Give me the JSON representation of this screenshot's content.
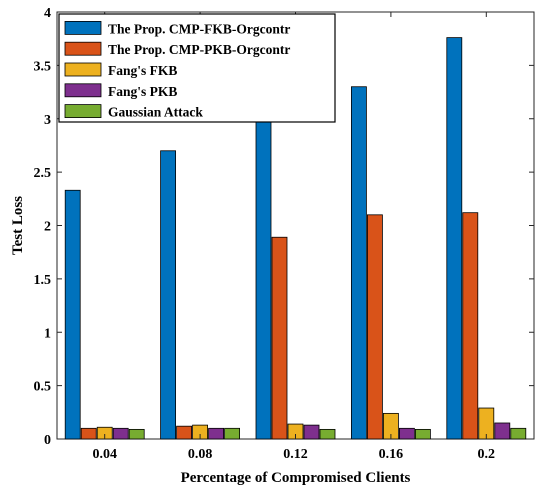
{
  "chart_data": {
    "type": "bar",
    "categories": [
      "0.04",
      "0.08",
      "0.12",
      "0.16",
      "0.2"
    ],
    "series": [
      {
        "name": "The Prop. CMP-FKB-Orgcontr",
        "color": "#0072BD",
        "values": [
          2.33,
          2.7,
          3.08,
          3.3,
          3.76
        ]
      },
      {
        "name": "The Prop. CMP-PKB-Orgcontr",
        "color": "#D95319",
        "values": [
          0.1,
          0.12,
          1.89,
          2.1,
          2.12
        ]
      },
      {
        "name": "Fang's FKB",
        "color": "#EDB120",
        "values": [
          0.11,
          0.13,
          0.14,
          0.24,
          0.29
        ]
      },
      {
        "name": "Fang's PKB",
        "color": "#7E2F8E",
        "values": [
          0.1,
          0.1,
          0.13,
          0.1,
          0.15
        ]
      },
      {
        "name": "Gaussian Attack",
        "color": "#77AC30",
        "values": [
          0.09,
          0.1,
          0.09,
          0.09,
          0.1
        ]
      }
    ],
    "xlabel": "Percentage of Compromised Clients",
    "ylabel": "Test Loss",
    "ylim": [
      0,
      4
    ],
    "yticks": [
      "0",
      "0.5",
      "1",
      "1.5",
      "2",
      "2.5",
      "3",
      "3.5",
      "4"
    ],
    "grid": false,
    "legend_position": "top-left"
  }
}
